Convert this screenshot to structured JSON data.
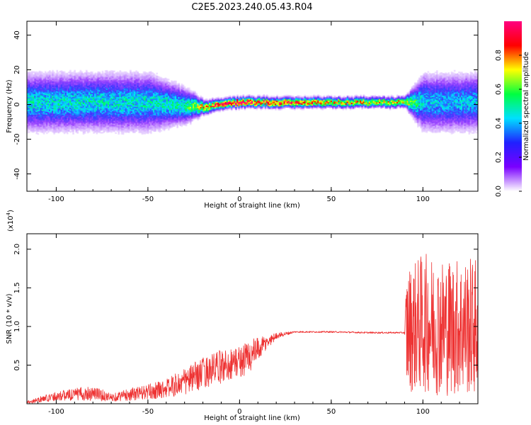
{
  "figure": {
    "title": "C2E5.2023.240.05.43.R04"
  },
  "chart_data": [
    {
      "type": "heatmap",
      "title": "C2E5.2023.240.05.43.R04",
      "xlabel": "Height of straight line (km)",
      "ylabel": "Frequency (Hz)",
      "xlim": [
        -116,
        130
      ],
      "ylim": [
        -50,
        48
      ],
      "xticks": [
        -100,
        -50,
        0,
        50,
        100
      ],
      "yticks": [
        -40,
        -20,
        0,
        20,
        40
      ],
      "colorbar": {
        "label": "Normalized spectral amplitude",
        "range": [
          0.0,
          1.0
        ],
        "ticks": [
          0.0,
          0.2,
          0.4,
          0.6,
          0.8
        ],
        "colormap": [
          "#ffffff",
          "#7a00ff",
          "#2020ff",
          "#00e0ff",
          "#00ff40",
          "#ffff00",
          "#ff0000",
          "#ff0080"
        ]
      },
      "frequency_centerline": {
        "x": [
          -116,
          -50,
          -30,
          -20,
          -10,
          0,
          50,
          90,
          100,
          130
        ],
        "y": [
          1,
          1,
          -1,
          -2,
          0,
          1,
          1,
          1,
          1,
          1
        ]
      },
      "spectral_width_hz": {
        "x": [
          -116,
          -50,
          -30,
          -20,
          -10,
          0,
          50,
          90,
          100,
          130
        ],
        "y": [
          8,
          8,
          5,
          2,
          1.5,
          1.5,
          1.5,
          1.5,
          8,
          8
        ]
      },
      "peak_amplitude": {
        "x": [
          -116,
          -50,
          -30,
          -20,
          -10,
          0,
          50,
          90,
          100,
          130
        ],
        "y": [
          0.45,
          0.45,
          0.5,
          0.75,
          0.9,
          0.95,
          0.75,
          0.7,
          0.4,
          0.4
        ]
      }
    },
    {
      "type": "line",
      "xlabel": "Height of straight line (km)",
      "ylabel": "SNR (10 * v/v)",
      "yscale_label": "(x10",
      "yscale_exponent": "4",
      "xlim": [
        -116,
        130
      ],
      "ylim": [
        0,
        2.2
      ],
      "xticks": [
        -100,
        -50,
        0,
        50,
        100
      ],
      "yticks": [
        0.5,
        1.0,
        1.5,
        2.0
      ],
      "ytick_labels": [
        "0.5",
        "1.0",
        "1.5",
        "2.0"
      ],
      "color": "#ee3333",
      "envelope": {
        "x": [
          -116,
          -100,
          -80,
          -70,
          -60,
          -50,
          -40,
          -30,
          -20,
          -10,
          0,
          5,
          10,
          20,
          30,
          50,
          70,
          90,
          91,
          100,
          110,
          120,
          130
        ],
        "mean": [
          0.02,
          0.1,
          0.14,
          0.08,
          0.12,
          0.15,
          0.2,
          0.28,
          0.4,
          0.48,
          0.55,
          0.6,
          0.7,
          0.88,
          0.93,
          0.93,
          0.92,
          0.92,
          0.95,
          1.05,
          1.0,
          1.0,
          1.0
        ],
        "spread": [
          0.02,
          0.06,
          0.1,
          0.05,
          0.08,
          0.1,
          0.12,
          0.18,
          0.2,
          0.22,
          0.2,
          0.25,
          0.15,
          0.04,
          0.01,
          0.01,
          0.01,
          0.01,
          0.8,
          0.9,
          0.9,
          0.9,
          0.9
        ]
      }
    }
  ]
}
